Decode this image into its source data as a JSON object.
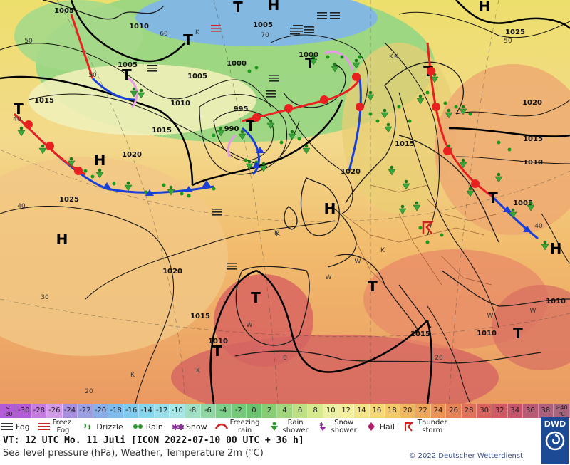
{
  "scale": {
    "first_top": "<",
    "first_bottom": "-30",
    "values": [
      "-30",
      "-28",
      "-26",
      "-24",
      "-22",
      "-20",
      "-18",
      "-16",
      "-14",
      "-12",
      "-10",
      "-8",
      "-6",
      "-4",
      "-2",
      "0",
      "2",
      "4",
      "6",
      "8",
      "10",
      "12",
      "14",
      "16",
      "18",
      "20",
      "22",
      "24",
      "26",
      "28",
      "30",
      "32",
      "34",
      "36",
      "38"
    ],
    "colors": [
      "#b35bd6",
      "#c57be0",
      "#d19be8",
      "#a98fe0",
      "#9a9fe6",
      "#8aaee9",
      "#7fbcee",
      "#7fcbef",
      "#86d6ee",
      "#96dfeb",
      "#a6e6e6",
      "#9fe0c4",
      "#8fd6a4",
      "#7ecf8a",
      "#74c97a",
      "#6cc36f",
      "#86cd74",
      "#a1d67c",
      "#bde085",
      "#d6e98f",
      "#ebf0a2",
      "#f3ef9c",
      "#f4e58a",
      "#f4d878",
      "#f3c96b",
      "#f1b861",
      "#efa75b",
      "#eb9457",
      "#e68356",
      "#e07259",
      "#d9645d",
      "#cf5a64",
      "#c4566b",
      "#b95a74",
      "#ad5f7c"
    ],
    "last_top": "≥40",
    "last_bottom": "°C"
  },
  "legend": [
    {
      "icon": "fog-icon",
      "label": "Fog"
    },
    {
      "icon": "freezing-fog-icon",
      "label": "Freez.\nFog"
    },
    {
      "icon": "drizzle-icon",
      "label": "Drizzle"
    },
    {
      "icon": "rain-icon",
      "label": "Rain"
    },
    {
      "icon": "snow-icon",
      "label": "Snow"
    },
    {
      "icon": "freezing-rain-icon",
      "label": "Freezing\nrain"
    },
    {
      "icon": "rain-shower-icon",
      "label": "Rain\nshower"
    },
    {
      "icon": "snow-shower-icon",
      "label": "Snow\nshower"
    },
    {
      "icon": "hail-icon",
      "label": "Hail"
    },
    {
      "icon": "thunderstorm-icon",
      "label": "Thunder\nstorm"
    }
  ],
  "info": {
    "valid_time": "VT: 12 UTC Mo.  11 Juli [ICON 2022-07-10  00 UTC + 36 h]",
    "description": "Sea level pressure (hPa), Weather, Temperature 2m (°C)",
    "copyright": "© 2022 Deutscher Wetterdienst",
    "logo": "DWD"
  },
  "map": {
    "colors": {
      "cold_front": "#1a3fd6",
      "warm_front": "#e82020",
      "occlusion": "#e59be8",
      "isobar": "#111111"
    },
    "pressure_centers": [
      {
        "label": "H",
        "kind": "high"
      },
      {
        "label": "H",
        "kind": "high"
      },
      {
        "label": "H",
        "kind": "high"
      },
      {
        "label": "H",
        "kind": "high"
      },
      {
        "label": "H",
        "kind": "high"
      },
      {
        "label": "H",
        "kind": "high"
      },
      {
        "label": "T",
        "kind": "low"
      },
      {
        "label": "T",
        "kind": "low"
      },
      {
        "label": "T",
        "kind": "low"
      },
      {
        "label": "T",
        "kind": "low"
      },
      {
        "label": "T",
        "kind": "low"
      },
      {
        "label": "T",
        "kind": "low"
      },
      {
        "label": "T",
        "kind": "low"
      },
      {
        "label": "T",
        "kind": "low"
      },
      {
        "label": "T",
        "kind": "low"
      },
      {
        "label": "T",
        "kind": "low"
      },
      {
        "label": "T",
        "kind": "low"
      },
      {
        "label": "T",
        "kind": "low"
      }
    ],
    "isobar_labels": [
      "1005",
      "1010",
      "1000",
      "1005",
      "1010",
      "1005",
      "1000",
      "995",
      "990",
      "1015",
      "1015",
      "1020",
      "1025",
      "1020",
      "1015",
      "1020",
      "1015",
      "1010",
      "1015",
      "1010",
      "1020",
      "1025",
      "1015",
      "1010",
      "1005",
      "1005",
      "1010",
      "1015"
    ],
    "side_labels": [
      "50",
      "60",
      "70",
      "50",
      "40",
      "40",
      "30",
      "20",
      "50",
      "40",
      "0",
      "20"
    ],
    "wind_letters": [
      "K",
      "K",
      "K",
      "K",
      "K",
      "W",
      "W",
      "W",
      "W",
      "W",
      "K",
      "K",
      "K"
    ]
  }
}
